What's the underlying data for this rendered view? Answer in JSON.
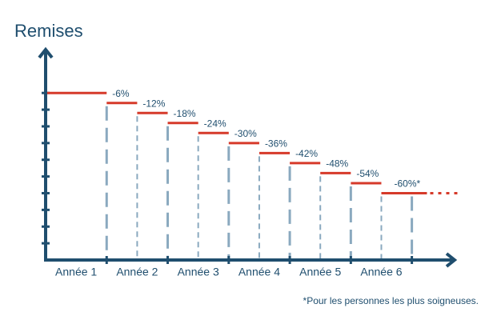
{
  "chart_data": {
    "type": "step",
    "title": "Remises",
    "x": [
      0,
      1,
      1.5,
      2,
      2.5,
      3,
      3.5,
      4,
      4.5,
      5,
      5.5
    ],
    "values": [
      0,
      -6,
      -12,
      -18,
      -24,
      -30,
      -36,
      -42,
      -48,
      -54,
      -60
    ],
    "value_labels": [
      null,
      "-6%",
      "-12%",
      "-18%",
      "-24%",
      "-30%",
      "-36%",
      "-42%",
      "-48%",
      "-54%",
      "-60%*"
    ],
    "categories": [
      "Année 1",
      "Année 2",
      "Année 3",
      "Année 4",
      "Année 5",
      "Année 6"
    ],
    "xlim": [
      0,
      6.7
    ],
    "xticks": [
      1,
      2,
      3,
      4,
      5,
      6
    ],
    "ylim": [
      -100,
      25
    ],
    "yticks": [
      0,
      -10,
      -20,
      -30,
      -40,
      -50,
      -60,
      -70,
      -80,
      -90
    ],
    "color": "#d63a2a",
    "footnote": "*Pour les personnes les plus soigneuses."
  }
}
